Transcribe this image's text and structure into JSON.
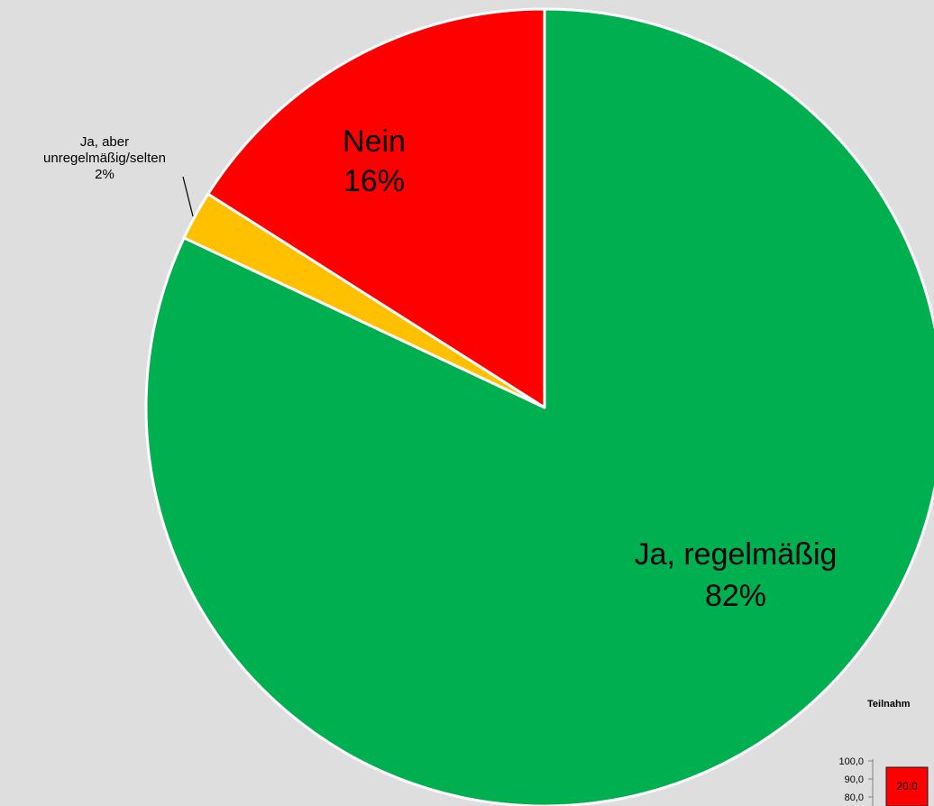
{
  "chart_data": {
    "type": "pie",
    "slices": [
      {
        "label": "Ja, regelmäßig",
        "value": 82,
        "pct_label": "82%",
        "color": "#00b050"
      },
      {
        "label": "Ja, aber unregelmäßig/selten",
        "label_lines": [
          "Ja, aber",
          "unregelmäßig/selten"
        ],
        "value": 2,
        "pct_label": "2%",
        "color": "#ffc000"
      },
      {
        "label": "Nein",
        "value": 16,
        "pct_label": "16%",
        "color": "#ff0000"
      }
    ],
    "start_angle": "12 o'clock",
    "direction": "clockwise",
    "background": "#dedede"
  },
  "inset_chart": {
    "title_fragment": "Teilnahm",
    "y_ticks": [
      "100,0",
      "90,0",
      "80,0"
    ],
    "bar_label": "20,0",
    "bar_color": "#ff0000"
  }
}
